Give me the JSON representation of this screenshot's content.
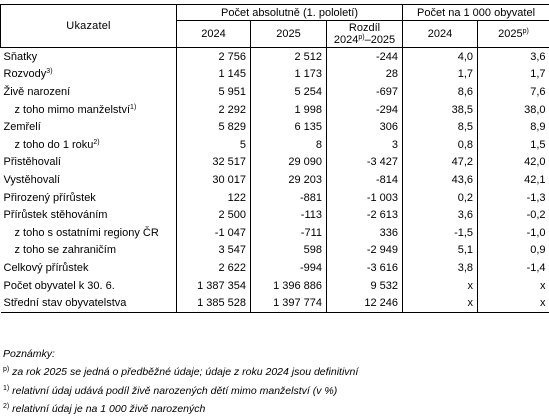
{
  "header": {
    "ukazatel": "Ukazatel",
    "abs_group": "Počet absolutně (1. pololetí)",
    "rel_group": "Počet na 1 000 obyvatel",
    "cols": [
      {
        "label": "2024",
        "sup": ""
      },
      {
        "label": "2025",
        "sup": ""
      },
      {
        "label": "Rozdíl 2024",
        "sup": "p)",
        "label2": "–2025"
      },
      {
        "label": "2024",
        "sup": ""
      },
      {
        "label": "2025",
        "sup": "p)"
      }
    ]
  },
  "rows": [
    {
      "label": "Sňatky",
      "sup": "",
      "indent": false,
      "values": [
        "2 756",
        "2 512",
        "-244",
        "4,0",
        "3,6"
      ]
    },
    {
      "label": "Rozvody",
      "sup": "3)",
      "indent": false,
      "values": [
        "1 145",
        "1 173",
        "28",
        "1,7",
        "1,7"
      ]
    },
    {
      "label": "Živě narození",
      "sup": "",
      "indent": false,
      "values": [
        "5 951",
        "5 254",
        "-697",
        "8,6",
        "7,6"
      ]
    },
    {
      "label": "z toho mimo manželství",
      "sup": "1)",
      "indent": true,
      "values": [
        "2 292",
        "1 998",
        "-294",
        "38,5",
        "38,0"
      ]
    },
    {
      "label": "Zemřelí",
      "sup": "",
      "indent": false,
      "values": [
        "5 829",
        "6 135",
        "306",
        "8,5",
        "8,9"
      ]
    },
    {
      "label": "z toho do 1 roku",
      "sup": "2)",
      "indent": true,
      "values": [
        "5",
        "8",
        "3",
        "0,8",
        "1,5"
      ]
    },
    {
      "label": "Přistěhovalí",
      "sup": "",
      "indent": false,
      "values": [
        "32 517",
        "29 090",
        "-3 427",
        "47,2",
        "42,0"
      ]
    },
    {
      "label": "Vystěhovalí",
      "sup": "",
      "indent": false,
      "values": [
        "30 017",
        "29 203",
        "-814",
        "43,6",
        "42,1"
      ]
    },
    {
      "label": "Přirozený přírůstek",
      "sup": "",
      "indent": false,
      "values": [
        "122",
        "-881",
        "-1 003",
        "0,2",
        "-1,3"
      ]
    },
    {
      "label": "Přírůstek stěhováním",
      "sup": "",
      "indent": false,
      "values": [
        "2 500",
        "-113",
        "-2 613",
        "3,6",
        "-0,2"
      ]
    },
    {
      "label": "z toho s ostatními regiony ČR",
      "sup": "",
      "indent": true,
      "values": [
        "-1 047",
        "-711",
        "336",
        "-1,5",
        "-1,0"
      ]
    },
    {
      "label": "z toho se zahraničím",
      "sup": "",
      "indent": true,
      "values": [
        "3 547",
        "598",
        "-2 949",
        "5,1",
        "0,9"
      ]
    },
    {
      "label": "Celkový přírůstek",
      "sup": "",
      "indent": false,
      "values": [
        "2 622",
        "-994",
        "-3 616",
        "3,8",
        "-1,4"
      ]
    },
    {
      "label": "Počet obyvatel k 30. 6.",
      "sup": "",
      "indent": false,
      "values": [
        "1 387 354",
        "1 396 886",
        "9 532",
        "x",
        "x"
      ]
    },
    {
      "label": "Střední stav obyvatelstva",
      "sup": "",
      "indent": false,
      "values": [
        "1 385 528",
        "1 397 774",
        "12 246",
        "x",
        "x"
      ]
    }
  ],
  "notes": {
    "title": "Poznámky:",
    "items": [
      {
        "mark": "p)",
        "text": " za rok 2025 se jedná o předběžné údaje; údaje z roku 2024 jsou definitivní"
      },
      {
        "mark": "1)",
        "text": " relativní údaj udává podíl živě narozených dětí mimo manželství (v %)"
      },
      {
        "mark": "2)",
        "text": " relativní údaj je na 1 000 živě narozených"
      }
    ]
  }
}
